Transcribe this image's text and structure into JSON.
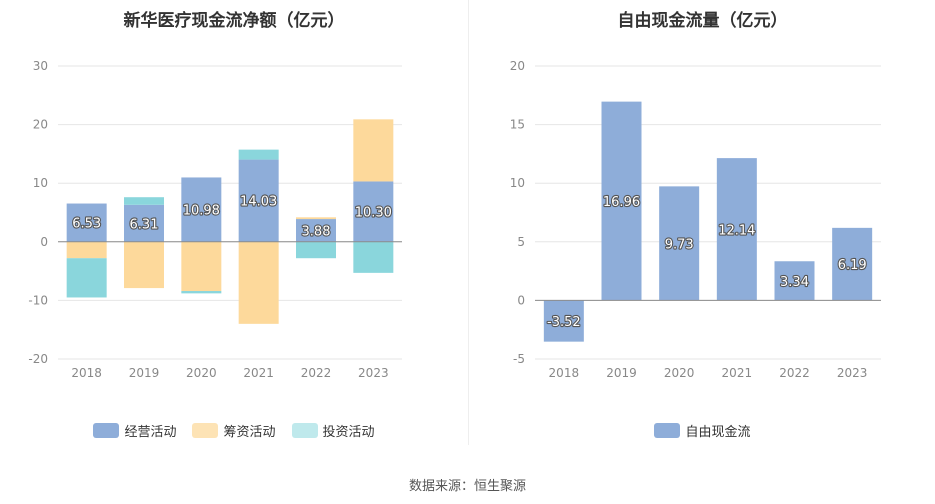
{
  "source_text": "数据来源：恒生聚源",
  "chart_data": [
    {
      "type": "bar",
      "stacked": true,
      "title": "新华医疗现金流净额（亿元）",
      "categories": [
        "2018",
        "2019",
        "2020",
        "2021",
        "2022",
        "2023"
      ],
      "ylim": [
        -20,
        30
      ],
      "yticks": [
        -20,
        -10,
        0,
        10,
        20,
        30
      ],
      "grid": true,
      "legend_position": "bottom",
      "series": [
        {
          "name": "经营活动",
          "color": "#8eadd9",
          "values": [
            6.53,
            6.31,
            10.98,
            14.03,
            3.88,
            10.3
          ],
          "labels": [
            "6.53",
            "6.31",
            "10.98",
            "14.03",
            "3.88",
            "10.30"
          ]
        },
        {
          "name": "筹资活动",
          "color": "#fdd99b",
          "values": [
            -2.8,
            -7.9,
            -8.4,
            -14.0,
            0.3,
            10.6
          ]
        },
        {
          "name": "投资活动",
          "color": "#8ad6dc",
          "values": [
            -6.7,
            1.3,
            -0.4,
            1.7,
            -2.8,
            -5.3
          ]
        }
      ]
    },
    {
      "type": "bar",
      "title": "自由现金流量（亿元）",
      "categories": [
        "2018",
        "2019",
        "2020",
        "2021",
        "2022",
        "2023"
      ],
      "ylim": [
        -5,
        20
      ],
      "yticks": [
        -5,
        0,
        5,
        10,
        15,
        20
      ],
      "grid": true,
      "legend_position": "bottom",
      "series": [
        {
          "name": "自由现金流",
          "color": "#8eadd9",
          "values": [
            -3.52,
            16.96,
            9.73,
            12.14,
            3.34,
            6.19
          ],
          "labels": [
            "-3.52",
            "16.96",
            "9.73",
            "12.14",
            "3.34",
            "6.19"
          ]
        }
      ]
    }
  ]
}
